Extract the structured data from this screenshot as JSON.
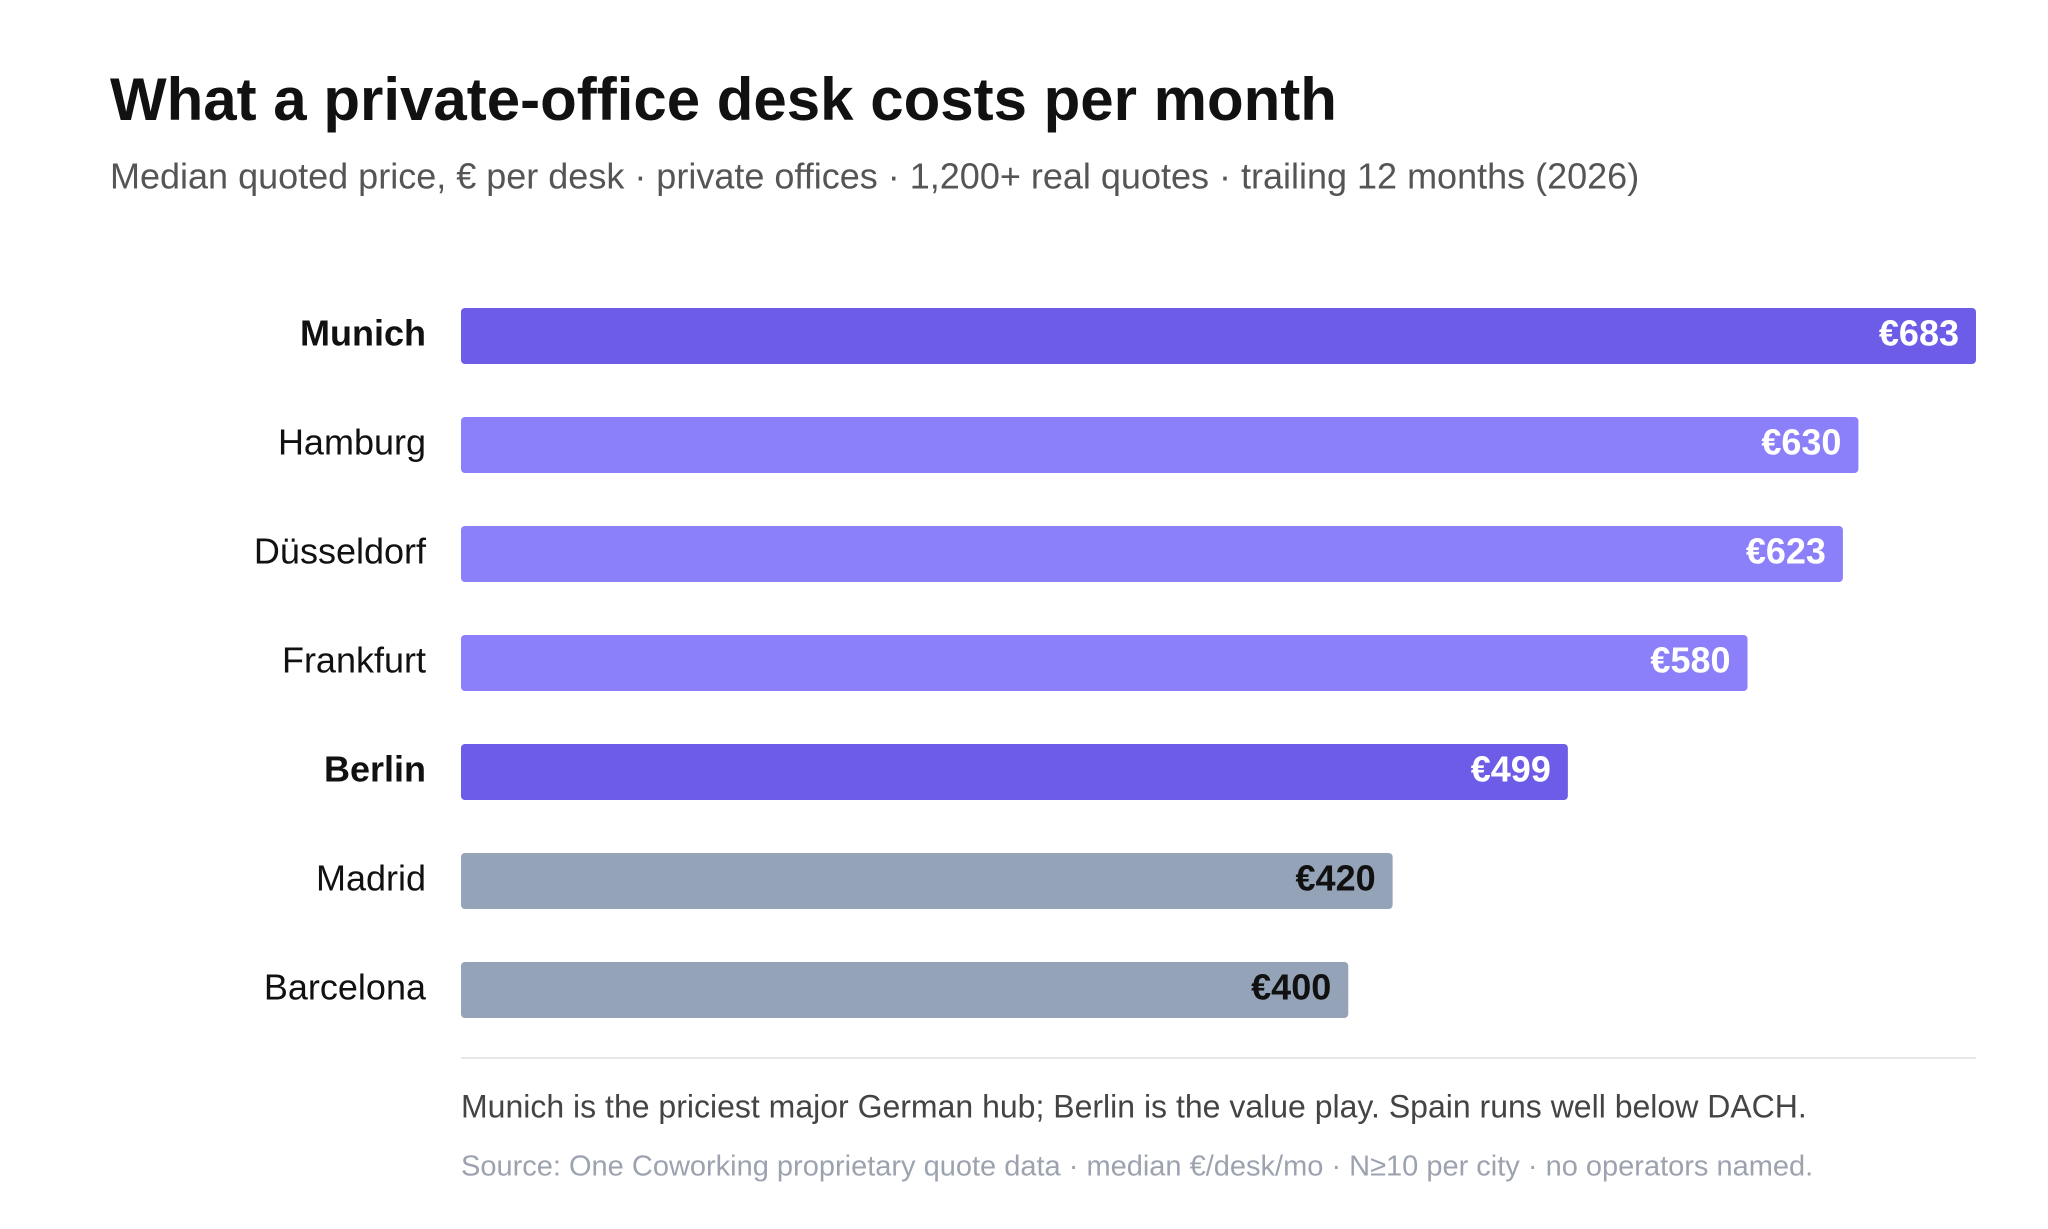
{
  "chart_data": {
    "type": "bar",
    "orientation": "horizontal",
    "title": "What a private-office desk costs per month",
    "subtitle": "Median quoted price, € per desk · private offices · 1,200+ real quotes · trailing 12 months (2026)",
    "categories": [
      "Munich",
      "Hamburg",
      "Düsseldorf",
      "Frankfurt",
      "Berlin",
      "Madrid",
      "Barcelona"
    ],
    "values": [
      683,
      630,
      623,
      580,
      499,
      420,
      400
    ],
    "value_labels": [
      "€683",
      "€630",
      "€623",
      "€580",
      "€499",
      "€420",
      "€400"
    ],
    "colors": [
      "#6c5ce7",
      "#8b80fa",
      "#8b80fa",
      "#8b80fa",
      "#6c5ce7",
      "#94a3b8",
      "#94a3b8"
    ],
    "label_colors": [
      "#ffffff",
      "#ffffff",
      "#ffffff",
      "#ffffff",
      "#ffffff",
      "#111111",
      "#111111"
    ],
    "bold_categories": [
      true,
      false,
      false,
      false,
      true,
      false,
      false
    ],
    "note": "Munich is the priciest major German hub; Berlin is the value play. Spain runs well below DACH.",
    "source": "Source: One Coworking proprietary quote data · median €/desk/mo · N≥10 per city · no operators named."
  }
}
